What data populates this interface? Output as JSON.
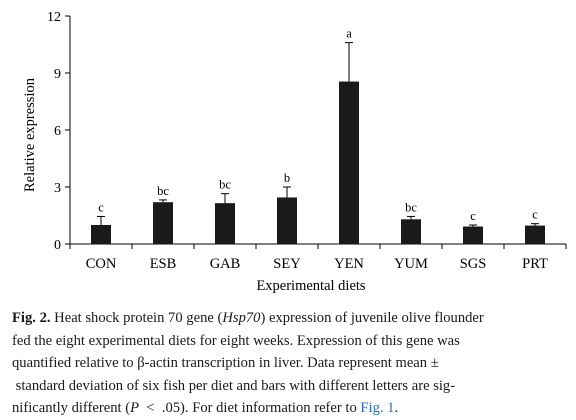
{
  "chart_data": {
    "type": "bar",
    "categories": [
      "CON",
      "ESB",
      "GAB",
      "SEY",
      "YEN",
      "YUM",
      "SGS",
      "PRT"
    ],
    "values": [
      1.0,
      2.2,
      2.15,
      2.45,
      8.55,
      1.3,
      0.92,
      0.97
    ],
    "error": [
      0.45,
      0.12,
      0.5,
      0.55,
      2.05,
      0.15,
      0.08,
      0.1
    ],
    "significance_letters": [
      "c",
      "bc",
      "bc",
      "b",
      "a",
      "bc",
      "c",
      "c"
    ],
    "ylim": [
      0,
      12
    ],
    "yticks": [
      "0",
      "3",
      "6",
      "9",
      "12"
    ],
    "ytick_values": [
      0,
      3,
      6,
      9,
      12
    ],
    "xlabel": "Experimental diets",
    "ylabel": "Relative expression",
    "bar_color": "#1a1a1a",
    "grid": false,
    "legend": "none"
  },
  "caption": {
    "fig_label": "Fig. 2.",
    "line1_pre": "Heat shock protein 70 gene (",
    "gene": "Hsp70",
    "line1_post": ") expression of juvenile olive flounder",
    "line2": "fed the eight experimental diets for eight weeks. Expression of this gene was",
    "line3": "quantified relative to β-actin transcription in liver. Data represent mean  ±",
    "line4": " standard deviation of six fish per diet and bars with different letters are sig-",
    "line5_pre": "nificantly different (",
    "p_symbol": "P",
    "line5_mid": "  <  .05). For diet information refer to ",
    "fig_link": "Fig. 1",
    "line5_end": ".",
    "link_color": "#2a6ebb"
  }
}
